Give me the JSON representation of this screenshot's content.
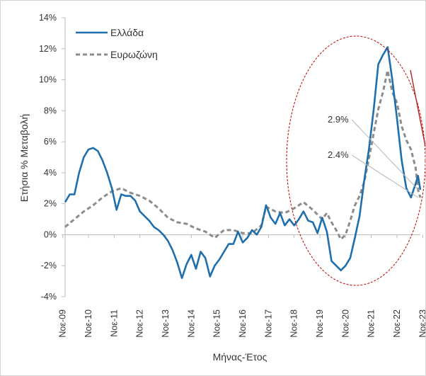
{
  "chart_data": {
    "type": "line",
    "xlabel": "Μήνας-Έτος",
    "ylabel": "Ετήσια % Μεταβολή",
    "ylim": [
      -4,
      14
    ],
    "yticks": [
      "-4%",
      "-2%",
      "0%",
      "2%",
      "4%",
      "6%",
      "8%",
      "10%",
      "12%",
      "14%"
    ],
    "xticks": [
      "Νοε-09",
      "Νοε-10",
      "Νοε-11",
      "Νοε-12",
      "Νοε-13",
      "Νοε-14",
      "Νοε-15",
      "Νοε-16",
      "Νοε-17",
      "Νοε-18",
      "Νοε-19",
      "Νοε-20",
      "Νοε-21",
      "Νοε-22",
      "Νοε-23"
    ],
    "legend_position": "top-left",
    "grid": false,
    "series": [
      {
        "name": "Ελλάδα",
        "color": "#1f6fad",
        "style": "solid",
        "points": [
          [
            0,
            2.1
          ],
          [
            2,
            2.6
          ],
          [
            4,
            2.6
          ],
          [
            6,
            4.0
          ],
          [
            8,
            5.0
          ],
          [
            10,
            5.5
          ],
          [
            12,
            5.6
          ],
          [
            14,
            5.4
          ],
          [
            16,
            4.8
          ],
          [
            18,
            4.0
          ],
          [
            20,
            3.0
          ],
          [
            22,
            1.6
          ],
          [
            24,
            2.6
          ],
          [
            26,
            2.5
          ],
          [
            28,
            2.5
          ],
          [
            30,
            2.2
          ],
          [
            32,
            1.5
          ],
          [
            34,
            1.2
          ],
          [
            36,
            0.9
          ],
          [
            38,
            0.5
          ],
          [
            40,
            0.3
          ],
          [
            42,
            0.0
          ],
          [
            44,
            -0.4
          ],
          [
            46,
            -1.0
          ],
          [
            48,
            -1.8
          ],
          [
            50,
            -2.8
          ],
          [
            52,
            -1.9
          ],
          [
            54,
            -1.3
          ],
          [
            56,
            -2.2
          ],
          [
            58,
            -1.1
          ],
          [
            60,
            -1.5
          ],
          [
            62,
            -2.7
          ],
          [
            64,
            -2.0
          ],
          [
            66,
            -1.6
          ],
          [
            68,
            -1.1
          ],
          [
            70,
            -0.6
          ],
          [
            72,
            -0.6
          ],
          [
            74,
            0.2
          ],
          [
            76,
            -0.5
          ],
          [
            78,
            -0.2
          ],
          [
            80,
            0.3
          ],
          [
            82,
            0.0
          ],
          [
            84,
            0.5
          ],
          [
            86,
            1.9
          ],
          [
            88,
            1.1
          ],
          [
            90,
            0.7
          ],
          [
            92,
            1.4
          ],
          [
            94,
            0.6
          ],
          [
            96,
            1.0
          ],
          [
            98,
            0.6
          ],
          [
            100,
            1.0
          ],
          [
            102,
            1.5
          ],
          [
            104,
            0.9
          ],
          [
            106,
            0.8
          ],
          [
            108,
            0.1
          ],
          [
            110,
            1.1
          ],
          [
            112,
            0.2
          ],
          [
            114,
            -1.7
          ],
          [
            116,
            -2.0
          ],
          [
            118,
            -2.3
          ],
          [
            120,
            -2.0
          ],
          [
            122,
            -1.5
          ],
          [
            124,
            -0.2
          ],
          [
            126,
            1.2
          ],
          [
            128,
            3.5
          ],
          [
            130,
            5.5
          ],
          [
            132,
            8.0
          ],
          [
            134,
            11.0
          ],
          [
            136,
            11.6
          ],
          [
            138,
            12.1
          ],
          [
            140,
            10.0
          ],
          [
            142,
            7.5
          ],
          [
            144,
            4.8
          ],
          [
            146,
            3.0
          ],
          [
            148,
            2.4
          ],
          [
            150,
            3.3
          ],
          [
            151,
            3.8
          ],
          [
            152,
            2.9
          ]
        ]
      },
      {
        "name": "Ευρωζώνη",
        "color": "#8c8c8c",
        "style": "dashed",
        "points": [
          [
            0,
            0.5
          ],
          [
            4,
            1.0
          ],
          [
            8,
            1.5
          ],
          [
            12,
            1.9
          ],
          [
            16,
            2.4
          ],
          [
            20,
            2.8
          ],
          [
            24,
            3.0
          ],
          [
            28,
            2.7
          ],
          [
            32,
            2.5
          ],
          [
            36,
            2.2
          ],
          [
            40,
            1.7
          ],
          [
            44,
            1.1
          ],
          [
            48,
            0.8
          ],
          [
            52,
            0.7
          ],
          [
            56,
            0.4
          ],
          [
            60,
            0.2
          ],
          [
            64,
            -0.2
          ],
          [
            68,
            0.3
          ],
          [
            72,
            0.3
          ],
          [
            76,
            0.1
          ],
          [
            80,
            0.1
          ],
          [
            84,
            0.6
          ],
          [
            86,
            1.8
          ],
          [
            90,
            1.5
          ],
          [
            94,
            1.4
          ],
          [
            98,
            1.7
          ],
          [
            102,
            2.1
          ],
          [
            106,
            1.6
          ],
          [
            110,
            1.0
          ],
          [
            112,
            1.4
          ],
          [
            114,
            0.8
          ],
          [
            116,
            0.3
          ],
          [
            118,
            -0.3
          ],
          [
            120,
            0.0
          ],
          [
            122,
            0.9
          ],
          [
            124,
            1.9
          ],
          [
            126,
            2.5
          ],
          [
            128,
            3.4
          ],
          [
            130,
            4.9
          ],
          [
            132,
            6.5
          ],
          [
            134,
            8.1
          ],
          [
            136,
            9.2
          ],
          [
            138,
            10.6
          ],
          [
            140,
            9.2
          ],
          [
            142,
            8.5
          ],
          [
            144,
            7.0
          ],
          [
            146,
            6.1
          ],
          [
            148,
            5.5
          ],
          [
            150,
            4.3
          ],
          [
            151,
            2.9
          ],
          [
            152,
            2.4
          ]
        ]
      }
    ],
    "annotations": [
      {
        "text": "2.9%",
        "x": 152,
        "y": 2.9
      },
      {
        "text": "2.4%",
        "x": 152,
        "y": 2.4
      }
    ]
  }
}
